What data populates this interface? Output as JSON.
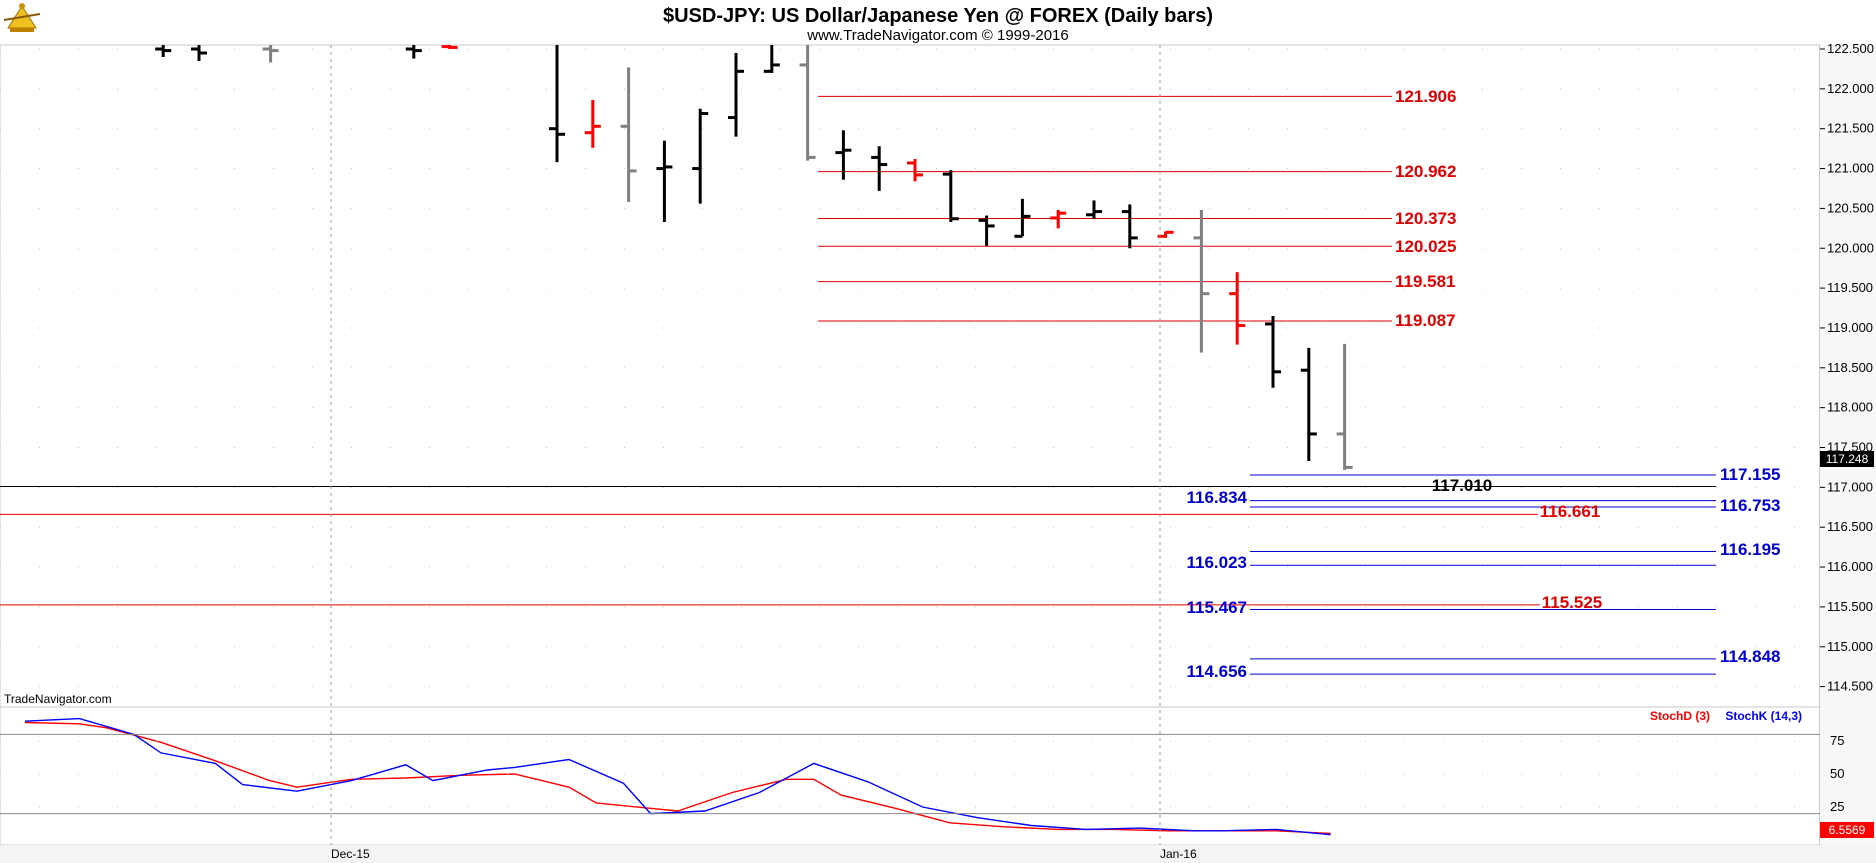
{
  "header": {
    "title": "$USD-JPY:  US Dollar/Japanese Yen @ FOREX  (Daily bars)",
    "subtitle": "www.TradeNavigator.com © 1999-2016",
    "logo_icon": "trade-navigator-logo-icon"
  },
  "watermark": "TradeNavigator.com",
  "colors": {
    "up": "#000000",
    "down": "#ff0000",
    "neutral": "#808080",
    "resistance": "#e00000",
    "support": "#0000d0",
    "black_level": "#000000",
    "stoch_d": "#ff0000",
    "stoch_k": "#0000ff"
  },
  "x_axis": {
    "labels": [
      "Dec-15",
      "Jan-16"
    ]
  },
  "chart_data": [
    {
      "type": "bar",
      "subtype": "ohlc",
      "title": "$USD-JPY:  US Dollar/Japanese Yen @ FOREX  (Daily bars)",
      "y_axis": {
        "side": "right",
        "ylim": [
          114.0,
          122.55
        ],
        "ticks": [
          "122.500",
          "122.000",
          "121.500",
          "121.000",
          "120.500",
          "120.000",
          "119.500",
          "119.000",
          "118.500",
          "118.000",
          "117.500",
          "117.000",
          "116.500",
          "116.000",
          "115.500",
          "115.000",
          "114.500"
        ]
      },
      "last_price": "117.248",
      "grid": "dotted",
      "bars": [
        {
          "i": 4,
          "high": 122.55,
          "low": 122.4,
          "open": 122.5,
          "close": 122.48,
          "color": "up"
        },
        {
          "i": 5,
          "high": 122.55,
          "low": 122.35,
          "open": 122.5,
          "close": 122.45,
          "color": "up"
        },
        {
          "i": 7,
          "high": 122.55,
          "low": 122.33,
          "open": 122.5,
          "close": 122.48,
          "color": "neutral"
        },
        {
          "i": 11,
          "high": 122.55,
          "low": 122.38,
          "open": 122.5,
          "close": 122.48,
          "color": "up"
        },
        {
          "i": 12,
          "high": 122.55,
          "low": 122.5,
          "open": 122.53,
          "close": 122.52,
          "color": "down"
        },
        {
          "i": 15,
          "high": 122.55,
          "low": 121.08,
          "open": 121.5,
          "close": 121.43,
          "color": "up"
        },
        {
          "i": 16,
          "high": 121.86,
          "low": 121.26,
          "open": 121.45,
          "close": 121.53,
          "color": "down"
        },
        {
          "i": 17,
          "high": 122.27,
          "low": 120.58,
          "open": 121.53,
          "close": 120.97,
          "color": "neutral"
        },
        {
          "i": 18,
          "high": 121.35,
          "low": 120.33,
          "open": 121.0,
          "close": 121.02,
          "color": "up"
        },
        {
          "i": 19,
          "high": 121.75,
          "low": 120.56,
          "open": 121.0,
          "close": 121.69,
          "color": "up"
        },
        {
          "i": 20,
          "high": 122.45,
          "low": 121.4,
          "open": 121.64,
          "close": 122.22,
          "color": "up"
        },
        {
          "i": 21,
          "high": 122.55,
          "low": 122.2,
          "open": 122.22,
          "close": 122.3,
          "color": "up"
        },
        {
          "i": 22,
          "high": 122.55,
          "low": 121.1,
          "open": 122.3,
          "close": 121.14,
          "color": "neutral"
        },
        {
          "i": 23,
          "high": 121.48,
          "low": 120.86,
          "open": 121.2,
          "close": 121.23,
          "color": "up"
        },
        {
          "i": 24,
          "high": 121.28,
          "low": 120.72,
          "open": 121.14,
          "close": 121.05,
          "color": "up"
        },
        {
          "i": 25,
          "high": 121.12,
          "low": 120.84,
          "open": 121.07,
          "close": 120.92,
          "color": "down"
        },
        {
          "i": 26,
          "high": 120.98,
          "low": 120.33,
          "open": 120.93,
          "close": 120.37,
          "color": "up"
        },
        {
          "i": 27,
          "high": 120.41,
          "low": 120.03,
          "open": 120.35,
          "close": 120.28,
          "color": "up"
        },
        {
          "i": 28,
          "high": 120.62,
          "low": 120.15,
          "open": 120.15,
          "close": 120.4,
          "color": "up"
        },
        {
          "i": 29,
          "high": 120.48,
          "low": 120.25,
          "open": 120.38,
          "close": 120.44,
          "color": "down"
        },
        {
          "i": 30,
          "high": 120.6,
          "low": 120.37,
          "open": 120.42,
          "close": 120.46,
          "color": "up"
        },
        {
          "i": 31,
          "high": 120.55,
          "low": 120.0,
          "open": 120.46,
          "close": 120.13,
          "color": "up"
        },
        {
          "i": 32,
          "high": 120.21,
          "low": 120.13,
          "open": 120.15,
          "close": 120.2,
          "color": "down"
        },
        {
          "i": 33,
          "high": 120.48,
          "low": 118.69,
          "open": 120.13,
          "close": 119.43,
          "color": "neutral"
        },
        {
          "i": 34,
          "high": 119.7,
          "low": 118.79,
          "open": 119.43,
          "close": 119.03,
          "color": "down"
        },
        {
          "i": 35,
          "high": 119.15,
          "low": 118.25,
          "open": 119.05,
          "close": 118.45,
          "color": "up"
        },
        {
          "i": 36,
          "high": 118.75,
          "low": 117.33,
          "open": 118.47,
          "close": 117.67,
          "color": "up"
        },
        {
          "i": 37,
          "high": 118.8,
          "low": 117.22,
          "open": 117.67,
          "close": 117.25,
          "color": "neutral"
        }
      ],
      "levels": [
        {
          "value": "121.906",
          "color": "resistance",
          "label": "121.906"
        },
        {
          "value": "120.962",
          "color": "resistance",
          "label": "120.962"
        },
        {
          "value": "120.373",
          "color": "resistance",
          "label": "120.373"
        },
        {
          "value": "120.025",
          "color": "resistance",
          "label": "120.025"
        },
        {
          "value": "119.581",
          "color": "resistance",
          "label": "119.581"
        },
        {
          "value": "119.087",
          "color": "resistance",
          "label": "119.087"
        },
        {
          "value": "117.155",
          "color": "support",
          "label": "117.155"
        },
        {
          "value": "117.010",
          "color": "black_level",
          "label": "117.010"
        },
        {
          "value": "116.834",
          "color": "support",
          "label": "116.834"
        },
        {
          "value": "116.753",
          "color": "support",
          "label": "116.753"
        },
        {
          "value": "116.661",
          "color": "resistance",
          "label": "116.661"
        },
        {
          "value": "116.195",
          "color": "support",
          "label": "116.195"
        },
        {
          "value": "116.023",
          "color": "support",
          "label": "116.023"
        },
        {
          "value": "115.525",
          "color": "resistance",
          "label": "115.525"
        },
        {
          "value": "115.467",
          "color": "support",
          "label": "115.467"
        },
        {
          "value": "114.848",
          "color": "support",
          "label": "114.848"
        },
        {
          "value": "114.656",
          "color": "support",
          "label": "114.656"
        }
      ]
    },
    {
      "type": "line",
      "title": "",
      "y_axis": {
        "ylim": [
          0,
          100
        ],
        "ticks": [
          "75",
          "50",
          "25"
        ]
      },
      "reference_lines": [
        80,
        20
      ],
      "last_value": "6.5569",
      "legend": [
        "StochD (3)",
        "StochK (14,3)"
      ],
      "series": [
        {
          "name": "StochD (3)",
          "color": "stoch_d",
          "values": [
            [
              0,
              89
            ],
            [
              2,
              88
            ],
            [
              3,
              85
            ],
            [
              5,
              74
            ],
            [
              7,
              60
            ],
            [
              9,
              45
            ],
            [
              10,
              40
            ],
            [
              12,
              46
            ],
            [
              14,
              47
            ],
            [
              16,
              49
            ],
            [
              18,
              50
            ],
            [
              20,
              40
            ],
            [
              21,
              28
            ],
            [
              24,
              22
            ],
            [
              26,
              36
            ],
            [
              28,
              46
            ],
            [
              29,
              46
            ],
            [
              30,
              34
            ],
            [
              32,
              24
            ],
            [
              34,
              13
            ],
            [
              36,
              10
            ],
            [
              38,
              8
            ],
            [
              40,
              8
            ],
            [
              42,
              7
            ],
            [
              44,
              7
            ],
            [
              46,
              7
            ],
            [
              48,
              5
            ]
          ]
        },
        {
          "name": "StochK (14,3)",
          "color": "stoch_k",
          "values": [
            [
              0,
              90
            ],
            [
              2,
              92
            ],
            [
              4,
              80
            ],
            [
              5,
              66
            ],
            [
              7,
              58
            ],
            [
              8,
              42
            ],
            [
              10,
              37
            ],
            [
              12,
              45
            ],
            [
              14,
              57
            ],
            [
              15,
              45
            ],
            [
              17,
              53
            ],
            [
              18,
              55
            ],
            [
              20,
              61
            ],
            [
              22,
              43
            ],
            [
              23,
              20
            ],
            [
              25,
              22
            ],
            [
              27,
              36
            ],
            [
              29,
              58
            ],
            [
              31,
              44
            ],
            [
              33,
              25
            ],
            [
              35,
              17
            ],
            [
              37,
              11
            ],
            [
              39,
              8
            ],
            [
              41,
              9
            ],
            [
              43,
              7
            ],
            [
              44,
              7
            ],
            [
              46,
              8
            ],
            [
              48,
              4
            ]
          ]
        }
      ]
    }
  ]
}
